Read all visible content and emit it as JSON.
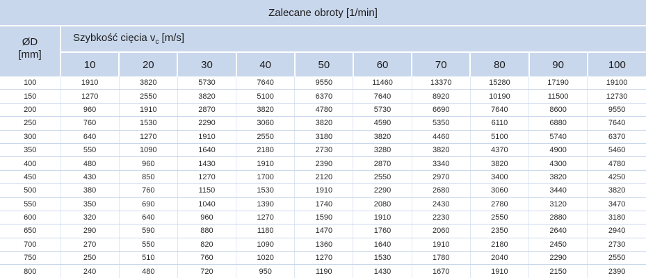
{
  "title": "Zalecane obroty [1/min]",
  "diameter_label": "ØD",
  "diameter_unit": "[mm]",
  "speed_label_prefix": "Szybkość cięcia v",
  "speed_label_sub": "c",
  "speed_label_unit": " [m/s]",
  "speeds": [
    "10",
    "20",
    "30",
    "40",
    "50",
    "60",
    "70",
    "80",
    "90",
    "100"
  ],
  "rows": [
    {
      "d": "100",
      "v": [
        "1910",
        "3820",
        "5730",
        "7640",
        "9550",
        "11460",
        "13370",
        "15280",
        "17190",
        "19100"
      ]
    },
    {
      "d": "150",
      "v": [
        "1270",
        "2550",
        "3820",
        "5100",
        "6370",
        "7640",
        "8920",
        "10190",
        "11500",
        "12730"
      ]
    },
    {
      "d": "200",
      "v": [
        "960",
        "1910",
        "2870",
        "3820",
        "4780",
        "5730",
        "6690",
        "7640",
        "8600",
        "9550"
      ]
    },
    {
      "d": "250",
      "v": [
        "760",
        "1530",
        "2290",
        "3060",
        "3820",
        "4590",
        "5350",
        "6110",
        "6880",
        "7640"
      ]
    },
    {
      "d": "300",
      "v": [
        "640",
        "1270",
        "1910",
        "2550",
        "3180",
        "3820",
        "4460",
        "5100",
        "5740",
        "6370"
      ]
    },
    {
      "d": "350",
      "v": [
        "550",
        "1090",
        "1640",
        "2180",
        "2730",
        "3280",
        "3820",
        "4370",
        "4900",
        "5460"
      ]
    },
    {
      "d": "400",
      "v": [
        "480",
        "960",
        "1430",
        "1910",
        "2390",
        "2870",
        "3340",
        "3820",
        "4300",
        "4780"
      ]
    },
    {
      "d": "450",
      "v": [
        "430",
        "850",
        "1270",
        "1700",
        "2120",
        "2550",
        "2970",
        "3400",
        "3820",
        "4250"
      ]
    },
    {
      "d": "500",
      "v": [
        "380",
        "760",
        "1150",
        "1530",
        "1910",
        "2290",
        "2680",
        "3060",
        "3440",
        "3820"
      ]
    },
    {
      "d": "550",
      "v": [
        "350",
        "690",
        "1040",
        "1390",
        "1740",
        "2080",
        "2430",
        "2780",
        "3120",
        "3470"
      ]
    },
    {
      "d": "600",
      "v": [
        "320",
        "640",
        "960",
        "1270",
        "1590",
        "1910",
        "2230",
        "2550",
        "2880",
        "3180"
      ]
    },
    {
      "d": "650",
      "v": [
        "290",
        "590",
        "880",
        "1180",
        "1470",
        "1760",
        "2060",
        "2350",
        "2640",
        "2940"
      ]
    },
    {
      "d": "700",
      "v": [
        "270",
        "550",
        "820",
        "1090",
        "1360",
        "1640",
        "1910",
        "2180",
        "2450",
        "2730"
      ]
    },
    {
      "d": "750",
      "v": [
        "250",
        "510",
        "760",
        "1020",
        "1270",
        "1530",
        "1780",
        "2040",
        "2290",
        "2550"
      ]
    },
    {
      "d": "800",
      "v": [
        "240",
        "480",
        "720",
        "950",
        "1190",
        "1430",
        "1670",
        "1910",
        "2150",
        "2390"
      ]
    }
  ]
}
